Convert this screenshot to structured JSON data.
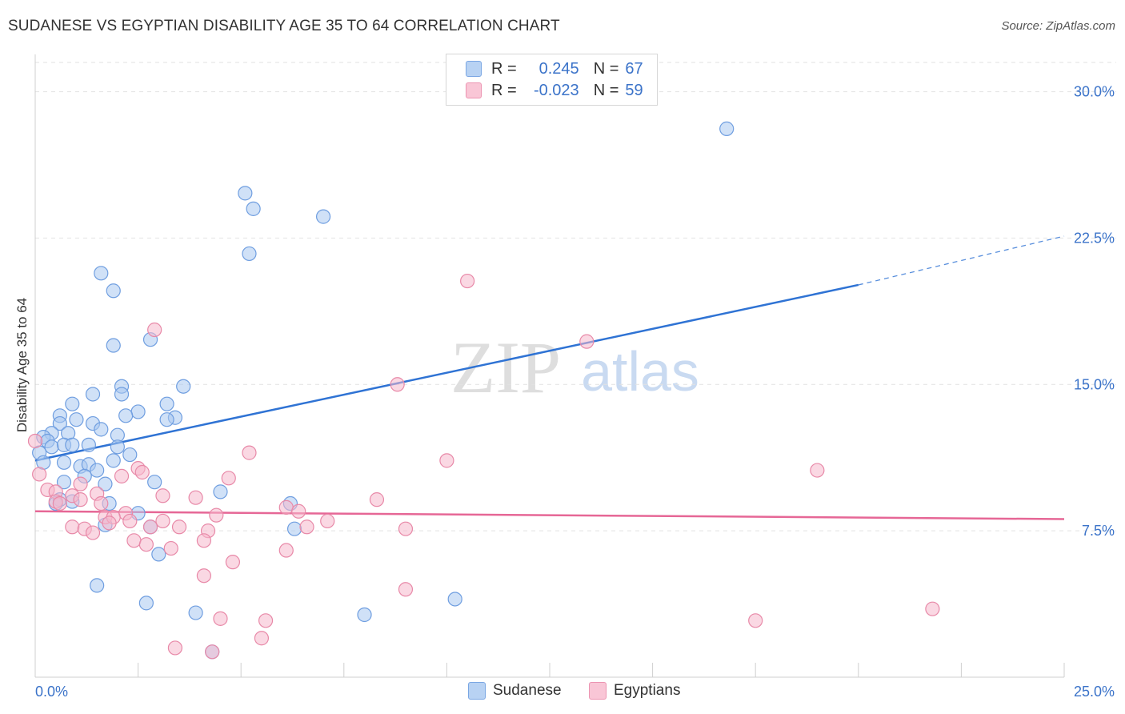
{
  "title": "SUDANESE VS EGYPTIAN DISABILITY AGE 35 TO 64 CORRELATION CHART",
  "source": "Source: ZipAtlas.com",
  "watermark": {
    "zip": "ZIP",
    "atlas": "atlas"
  },
  "colors": {
    "blue_fill": "#aac8f0",
    "blue_stroke": "#6f9ee0",
    "blue_line": "#2f73d4",
    "pink_fill": "#f5b8cc",
    "pink_stroke": "#e889a8",
    "pink_line": "#e66796",
    "axis_text": "#3b73c9"
  },
  "legend": {
    "rows": [
      {
        "r_label": "R =",
        "r_value": "0.245",
        "n_label": "N =",
        "n_value": "67"
      },
      {
        "r_label": "R =",
        "r_value": "-0.023",
        "n_label": "N =",
        "n_value": "59"
      }
    ]
  },
  "chart_data": {
    "type": "scatter",
    "title": "SUDANESE VS EGYPTIAN DISABILITY AGE 35 TO 64 CORRELATION CHART",
    "xlabel": "",
    "ylabel": "Disability Age 35 to 64",
    "xlim": [
      0,
      25
    ],
    "ylim": [
      0,
      31.5
    ],
    "x_tick_labels": [
      "0.0%",
      "25.0%"
    ],
    "y_ticks": [
      7.5,
      15.0,
      22.5,
      30.0
    ],
    "y_tick_labels": [
      "7.5%",
      "15.0%",
      "22.5%",
      "30.0%"
    ],
    "grid": true,
    "legend_position": "top-center",
    "series": [
      {
        "name": "Sudanese",
        "R": 0.245,
        "N": 67,
        "trend": {
          "x": [
            0,
            20
          ],
          "y": [
            11.1,
            20.1
          ],
          "dashed_to": [
            25,
            22.6
          ]
        },
        "points": [
          [
            16.8,
            28.1
          ],
          [
            5.1,
            24.8
          ],
          [
            5.3,
            24.0
          ],
          [
            7.0,
            23.6
          ],
          [
            5.2,
            21.7
          ],
          [
            1.6,
            20.7
          ],
          [
            1.9,
            19.8
          ],
          [
            2.8,
            17.3
          ],
          [
            1.9,
            17.0
          ],
          [
            2.1,
            14.9
          ],
          [
            2.1,
            14.5
          ],
          [
            3.6,
            14.9
          ],
          [
            1.4,
            14.5
          ],
          [
            0.9,
            14.0
          ],
          [
            2.5,
            13.6
          ],
          [
            3.2,
            14.0
          ],
          [
            2.2,
            13.4
          ],
          [
            3.4,
            13.3
          ],
          [
            3.2,
            13.2
          ],
          [
            0.6,
            13.4
          ],
          [
            1.0,
            13.2
          ],
          [
            0.6,
            13.0
          ],
          [
            1.4,
            13.0
          ],
          [
            1.6,
            12.7
          ],
          [
            0.4,
            12.5
          ],
          [
            0.8,
            12.5
          ],
          [
            2.0,
            12.4
          ],
          [
            0.2,
            12.3
          ],
          [
            0.3,
            12.1
          ],
          [
            0.4,
            11.8
          ],
          [
            0.7,
            11.9
          ],
          [
            0.9,
            11.9
          ],
          [
            1.3,
            11.9
          ],
          [
            2.0,
            11.8
          ],
          [
            0.1,
            11.5
          ],
          [
            2.3,
            11.4
          ],
          [
            0.2,
            11.0
          ],
          [
            0.7,
            11.0
          ],
          [
            1.1,
            10.8
          ],
          [
            1.3,
            10.9
          ],
          [
            1.9,
            11.1
          ],
          [
            1.5,
            10.6
          ],
          [
            1.2,
            10.3
          ],
          [
            0.7,
            10.0
          ],
          [
            2.9,
            10.0
          ],
          [
            1.7,
            9.9
          ],
          [
            4.5,
            9.5
          ],
          [
            0.6,
            9.1
          ],
          [
            0.9,
            9.0
          ],
          [
            0.5,
            8.9
          ],
          [
            1.8,
            8.9
          ],
          [
            6.2,
            8.9
          ],
          [
            2.5,
            8.4
          ],
          [
            6.3,
            7.6
          ],
          [
            1.7,
            7.8
          ],
          [
            2.8,
            7.7
          ],
          [
            3.0,
            6.3
          ],
          [
            1.5,
            4.7
          ],
          [
            2.7,
            3.8
          ],
          [
            3.9,
            3.3
          ],
          [
            8.0,
            3.2
          ],
          [
            10.2,
            4.0
          ],
          [
            4.3,
            1.3
          ]
        ]
      },
      {
        "name": "Egyptians",
        "R": -0.023,
        "N": 59,
        "trend": {
          "x": [
            0,
            25
          ],
          "y": [
            8.5,
            8.1
          ]
        },
        "points": [
          [
            10.5,
            20.3
          ],
          [
            2.9,
            17.8
          ],
          [
            13.4,
            17.2
          ],
          [
            8.8,
            15.0
          ],
          [
            5.2,
            11.5
          ],
          [
            10.0,
            11.1
          ],
          [
            19.0,
            10.6
          ],
          [
            0.0,
            12.1
          ],
          [
            0.1,
            10.4
          ],
          [
            0.3,
            9.6
          ],
          [
            2.5,
            10.7
          ],
          [
            2.6,
            10.5
          ],
          [
            2.1,
            10.3
          ],
          [
            4.7,
            10.2
          ],
          [
            1.1,
            9.9
          ],
          [
            0.5,
            9.5
          ],
          [
            0.9,
            9.3
          ],
          [
            1.5,
            9.4
          ],
          [
            3.1,
            9.3
          ],
          [
            0.5,
            9.0
          ],
          [
            0.6,
            8.9
          ],
          [
            1.1,
            9.1
          ],
          [
            3.9,
            9.2
          ],
          [
            8.3,
            9.1
          ],
          [
            6.1,
            8.7
          ],
          [
            6.4,
            8.5
          ],
          [
            1.6,
            8.9
          ],
          [
            2.2,
            8.4
          ],
          [
            1.7,
            8.2
          ],
          [
            1.9,
            8.2
          ],
          [
            4.4,
            8.3
          ],
          [
            2.3,
            8.0
          ],
          [
            3.1,
            8.0
          ],
          [
            7.1,
            8.0
          ],
          [
            1.8,
            7.9
          ],
          [
            0.9,
            7.7
          ],
          [
            1.2,
            7.6
          ],
          [
            1.4,
            7.4
          ],
          [
            2.8,
            7.7
          ],
          [
            3.5,
            7.7
          ],
          [
            6.6,
            7.7
          ],
          [
            9.0,
            7.6
          ],
          [
            4.2,
            7.5
          ],
          [
            2.4,
            7.0
          ],
          [
            4.1,
            7.0
          ],
          [
            2.7,
            6.8
          ],
          [
            3.3,
            6.6
          ],
          [
            6.1,
            6.5
          ],
          [
            4.8,
            5.9
          ],
          [
            4.1,
            5.2
          ],
          [
            9.0,
            4.5
          ],
          [
            4.5,
            3.0
          ],
          [
            5.6,
            2.9
          ],
          [
            17.5,
            2.9
          ],
          [
            21.8,
            3.5
          ],
          [
            5.5,
            2.0
          ],
          [
            3.4,
            1.5
          ],
          [
            4.3,
            1.3
          ]
        ]
      }
    ]
  }
}
